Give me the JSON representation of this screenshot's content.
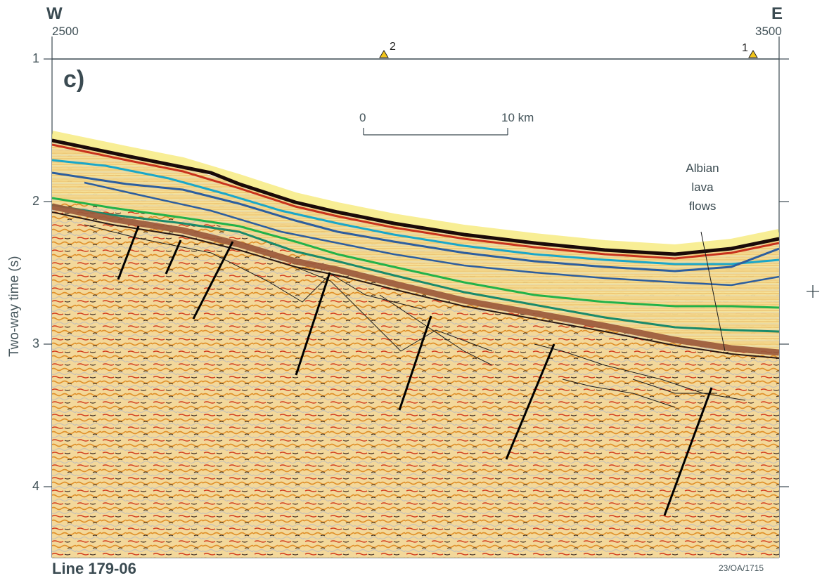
{
  "header": {
    "west_label": "W",
    "east_label": "E",
    "trace_start": "2500",
    "trace_end": "3500"
  },
  "wells": [
    {
      "number": "2",
      "color": "#f2c51b"
    },
    {
      "number": "1",
      "color": "#f2c51b"
    }
  ],
  "panel_label": "c)",
  "y_axis": {
    "label": "Two-way time (s)",
    "ticks": [
      "1",
      "2",
      "3",
      "4"
    ]
  },
  "scale_bar": {
    "start": "0",
    "end": "10 km"
  },
  "annotation": {
    "line1": "Albian",
    "line2": "lava",
    "line3": "flows"
  },
  "line_name": "Line 179-06",
  "reference": "23/OA/1715",
  "crosshair_symbol": "+",
  "colors": {
    "frame": "#3c4a52",
    "seabed": "#1a0a08",
    "horizon_cyan": "#1aa7c9",
    "horizon_blue": "#2d5e9e",
    "horizon_green_bright": "#22b24a",
    "horizon_green_dark": "#1a8a6a",
    "horizon_brown": "#9b5a3c",
    "fault": "#000000"
  }
}
